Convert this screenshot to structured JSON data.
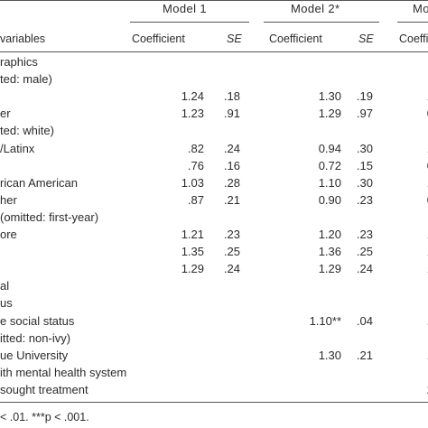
{
  "table": {
    "model_headers": [
      "Model 1",
      "Model 2*",
      "Mo"
    ],
    "col_headers": {
      "variables": "variables",
      "coef1": "Coefficient",
      "se1": "SE",
      "coef2": "Coefficient",
      "se2": "SE",
      "coef3": "Coefficie"
    },
    "rows": [
      {
        "label": "raphics",
        "m1c": "",
        "m1s": "",
        "m2c": "",
        "m2s": "",
        "m3": ""
      },
      {
        "label": "ted: male)",
        "m1c": "",
        "m1s": "",
        "m2c": "",
        "m2s": "",
        "m3": ""
      },
      {
        "label": "",
        "m1c": "1.24",
        "m1s": ".18",
        "m2c": "1.30",
        "m2s": ".19",
        "m3": "1"
      },
      {
        "label": "er",
        "m1c": "1.23",
        "m1s": ".91",
        "m2c": "1.29",
        "m2s": ".97",
        "m3": "0"
      },
      {
        "label": "ted: white)",
        "m1c": "",
        "m1s": "",
        "m2c": "",
        "m2s": "",
        "m3": ""
      },
      {
        "label": "/Latinx",
        "m1c": ".82",
        "m1s": ".24",
        "m2c": "0.94",
        "m2s": ".30",
        "m3": "1"
      },
      {
        "label": "",
        "m1c": ".76",
        "m1s": ".16",
        "m2c": "0.72",
        "m2s": ".15",
        "m3": "0"
      },
      {
        "label": "rican American",
        "m1c": "1.03",
        "m1s": ".28",
        "m2c": "1.10",
        "m2s": ".30",
        "m3": "1"
      },
      {
        "label": "her",
        "m1c": ".87",
        "m1s": ".21",
        "m2c": "0.90",
        "m2s": ".23",
        "m3": "0"
      },
      {
        "label": "(omitted: first-year)",
        "m1c": "",
        "m1s": "",
        "m2c": "",
        "m2s": "",
        "m3": ""
      },
      {
        "label": "ore",
        "m1c": "1.21",
        "m1s": ".23",
        "m2c": "1.20",
        "m2s": ".23",
        "m3": "1"
      },
      {
        "label": "",
        "m1c": "1.35",
        "m1s": ".25",
        "m2c": "1.36",
        "m2s": ".25",
        "m3": "1"
      },
      {
        "label": "",
        "m1c": "1.29",
        "m1s": ".24",
        "m2c": "1.29",
        "m2s": ".24",
        "m3": "1"
      },
      {
        "label": "al",
        "m1c": "",
        "m1s": "",
        "m2c": "",
        "m2s": "",
        "m3": ""
      },
      {
        "label": "us",
        "m1c": "",
        "m1s": "",
        "m2c": "",
        "m2s": "",
        "m3": ""
      },
      {
        "label": "e social status",
        "m1c": "",
        "m1s": "",
        "m2c": "1.10**",
        "m2s": ".04",
        "m3": "1"
      },
      {
        "label": "itted: non-ivy)",
        "m1c": "",
        "m1s": "",
        "m2c": "",
        "m2s": "",
        "m3": ""
      },
      {
        "label": "ue University",
        "m1c": "",
        "m1s": "",
        "m2c": "1.30",
        "m2s": ".21",
        "m3": "1"
      },
      {
        "label": "ith mental health system",
        "m1c": "",
        "m1s": "",
        "m2c": "",
        "m2s": "",
        "m3": ""
      },
      {
        "label": "sought treatment",
        "m1c": "",
        "m1s": "",
        "m2c": "",
        "m2s": "",
        "m3": "2"
      }
    ],
    "footnote": "< .01. ***p < .001."
  }
}
